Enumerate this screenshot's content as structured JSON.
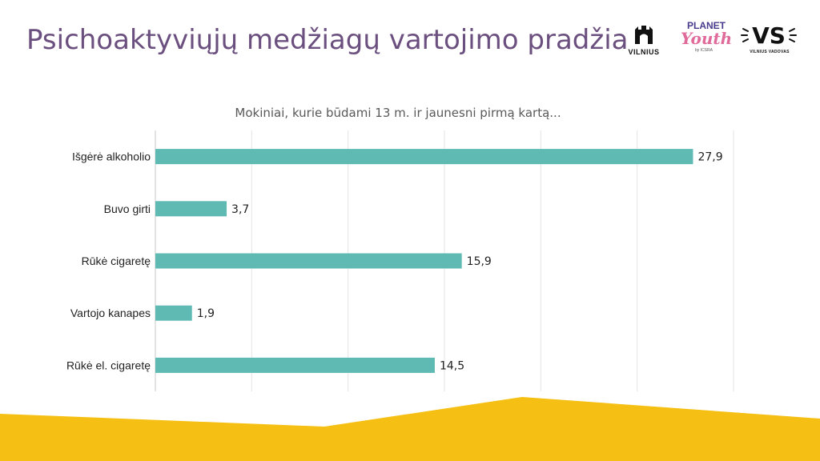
{
  "page": {
    "title": "Psichoaktyviųjų medžiagų vartojimo pradžia"
  },
  "logos": {
    "vilnius": "VILNIUS",
    "planet_top": "PLANET",
    "planet_main": "Youth",
    "planet_sub": "by ICSRA",
    "vs": "VS",
    "vs_sub": "VILNIUS VADOVAS"
  },
  "colors": {
    "title": "#6b4f7f",
    "bar": "#5fbab3",
    "footer": "#f5c013",
    "grid": "#e3e3e3"
  },
  "chart_data": {
    "type": "bar",
    "orientation": "horizontal",
    "title": "Mokiniai, kurie būdami 13 m. ir jaunesni pirmą kartą...",
    "categories": [
      "Išgėrė alkoholio",
      "Buvo girti",
      "Rūkė cigaretę",
      "Vartojo kanapes",
      "Rūkė el. cigaretę"
    ],
    "values": [
      27.9,
      3.7,
      15.9,
      1.9,
      14.5
    ],
    "data_labels": [
      "27,9",
      "3,7",
      "15,9",
      "1,9",
      "14,5"
    ],
    "xlim": [
      0,
      30
    ],
    "grid": true,
    "legend": "none",
    "xlabel": "",
    "ylabel": ""
  }
}
